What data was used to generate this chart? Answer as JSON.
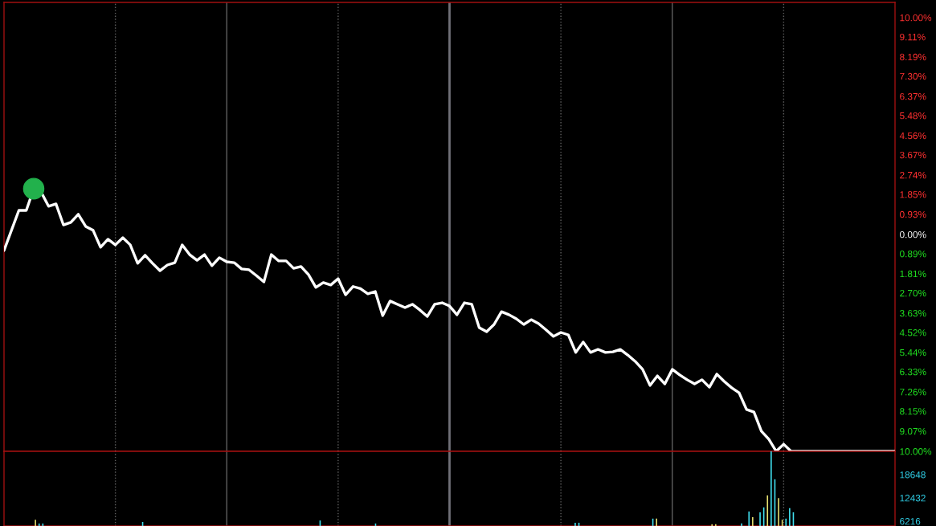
{
  "chart_data": [
    {
      "type": "line",
      "categories": [
        null,
        null,
        null,
        null,
        null,
        null,
        null,
        null,
        null,
        null,
        null,
        null,
        null,
        null,
        null,
        null,
        null,
        null,
        null,
        null,
        null,
        null,
        null,
        null,
        null,
        null,
        null,
        null,
        null,
        null,
        null,
        null,
        null,
        null,
        null,
        null,
        null,
        null,
        null,
        null,
        null,
        null,
        null,
        null,
        null,
        null,
        null,
        null,
        null,
        null,
        null,
        null,
        null,
        null,
        null,
        null,
        null,
        null,
        null,
        null,
        null,
        null,
        null,
        null,
        null,
        null,
        null,
        null,
        null,
        null,
        null,
        null,
        null,
        null,
        null,
        null,
        null,
        null,
        null,
        null,
        null,
        null,
        null,
        null,
        null,
        null,
        null,
        null,
        null,
        null,
        null,
        null,
        null,
        null,
        null,
        null,
        null,
        null,
        null,
        null,
        null,
        null,
        null,
        null,
        null,
        null,
        null,
        null,
        null,
        null,
        null,
        null,
        null,
        null,
        null,
        null,
        null,
        null,
        null,
        null,
        null
      ],
      "ylim": [
        -10,
        10.7
      ],
      "yticks": [
        {
          "value": 10,
          "label": "10.00%"
        },
        {
          "value": 9.11,
          "label": "9.11%"
        },
        {
          "value": 8.19,
          "label": "8.19%"
        },
        {
          "value": 7.3,
          "label": "7.30%"
        },
        {
          "value": 6.37,
          "label": "6.37%"
        },
        {
          "value": 5.48,
          "label": "5.48%"
        },
        {
          "value": 4.56,
          "label": "4.56%"
        },
        {
          "value": 3.67,
          "label": "3.67%"
        },
        {
          "value": 2.74,
          "label": "2.74%"
        },
        {
          "value": 1.85,
          "label": "1.85%"
        },
        {
          "value": 0.93,
          "label": "0.93%"
        },
        {
          "value": 0,
          "label": "0.00%"
        },
        {
          "value": -0.89,
          "label": "0.89%"
        },
        {
          "value": -1.81,
          "label": "1.81%"
        },
        {
          "value": -2.7,
          "label": "2.70%"
        },
        {
          "value": -3.63,
          "label": "3.63%"
        },
        {
          "value": -4.52,
          "label": "4.52%"
        },
        {
          "value": -5.44,
          "label": "5.44%"
        },
        {
          "value": -6.33,
          "label": "6.33%"
        },
        {
          "value": -7.26,
          "label": "7.26%"
        },
        {
          "value": -8.15,
          "label": "8.15%"
        },
        {
          "value": -9.07,
          "label": "9.07%"
        },
        {
          "value": -10,
          "label": "10.00%"
        }
      ],
      "tick_labels": "y",
      "grid": "x",
      "series": [
        {
          "color": "#ffffff",
          "values": [
            -0.74,
            0.19,
            1.11,
            1.11,
            2.11,
            1.95,
            1.3,
            1.41,
            0.44,
            0.56,
            0.93,
            0.37,
            0.19,
            -0.59,
            -0.22,
            -0.48,
            -0.15,
            -0.48,
            -1.33,
            -0.96,
            -1.33,
            -1.67,
            -1.41,
            -1.3,
            -0.48,
            -0.93,
            -1.19,
            -0.93,
            -1.44,
            -1.07,
            -1.26,
            -1.3,
            -1.59,
            -1.63,
            -1.9,
            -2.19,
            -0.93,
            -1.22,
            -1.22,
            -1.56,
            -1.48,
            -1.85,
            -2.44,
            -2.22,
            -2.33,
            -2.04,
            -2.78,
            -2.4,
            -2.5,
            -2.74,
            -2.63,
            -3.74,
            -3.07,
            -3.22,
            -3.37,
            -3.22,
            -3.48,
            -3.78,
            -3.22,
            -3.15,
            -3.3,
            -3.7,
            -3.15,
            -3.22,
            -4.3,
            -4.48,
            -4.15,
            -3.56,
            -3.7,
            -3.89,
            -4.15,
            -3.93,
            -4.11,
            -4.4,
            -4.7,
            -4.52,
            -4.63,
            -5.44,
            -4.96,
            -5.44,
            -5.3,
            -5.44,
            -5.41,
            -5.3,
            -5.56,
            -5.85,
            -6.22,
            -6.96,
            -6.52,
            -6.89,
            -6.22,
            -6.48,
            -6.7,
            -6.89,
            -6.7,
            -7.04,
            -6.44,
            -6.78,
            -7.07,
            -7.3,
            -8.07,
            -8.19,
            -9.07,
            -9.44,
            -10,
            -9.67,
            -10,
            -10,
            -10,
            -10,
            -10,
            -10,
            -10,
            -10,
            -10,
            -10,
            -10,
            -10,
            -10,
            -10,
            -10
          ]
        }
      ]
    },
    {
      "type": "bar",
      "categories": [
        null,
        null,
        null,
        null,
        null,
        null,
        null,
        null,
        null,
        null,
        null,
        null,
        null,
        null,
        null,
        null,
        null,
        null,
        null,
        null,
        null,
        null,
        null,
        null,
        null,
        null,
        null,
        null,
        null,
        null,
        null,
        null,
        null,
        null,
        null,
        null,
        null,
        null,
        null,
        null,
        null,
        null,
        null,
        null,
        null,
        null,
        null,
        null,
        null,
        null,
        null,
        null,
        null,
        null,
        null,
        null,
        null,
        null,
        null,
        null,
        null,
        null,
        null,
        null,
        null,
        null,
        null,
        null,
        null,
        null,
        null,
        null,
        null,
        null,
        null,
        null,
        null,
        null,
        null,
        null,
        null,
        null,
        null,
        null,
        null,
        null,
        null,
        null,
        null,
        null,
        null,
        null,
        null,
        null,
        null,
        null,
        null,
        null,
        null,
        null,
        null,
        null,
        null,
        null,
        null,
        null,
        null,
        null,
        null,
        null,
        null,
        null,
        null,
        null,
        null,
        null,
        null,
        null,
        null,
        null,
        null,
        null,
        null,
        null,
        null,
        null,
        null,
        null,
        null,
        null,
        null,
        null,
        null,
        null,
        null,
        null,
        null,
        null,
        null,
        null,
        null,
        null,
        null,
        null,
        null,
        null,
        null,
        null,
        null,
        null,
        null,
        null,
        null,
        null,
        null,
        null,
        null,
        null,
        null,
        null,
        null,
        null,
        null,
        null,
        null,
        null,
        null,
        null,
        null,
        null,
        null,
        null,
        null,
        null,
        null,
        null,
        null,
        null,
        null,
        null,
        null,
        null,
        null,
        null,
        null,
        null,
        null,
        null,
        null,
        null,
        null,
        null,
        null,
        null,
        null,
        null,
        null,
        null,
        null,
        null,
        null,
        null,
        null,
        null,
        null,
        null,
        null,
        null,
        null,
        null,
        null,
        null,
        null,
        null,
        null,
        null,
        null,
        null,
        null,
        null,
        null,
        null,
        null,
        null,
        null,
        null,
        null,
        null,
        null,
        null,
        null,
        null,
        null,
        null,
        null,
        null,
        null,
        null,
        null,
        null,
        null
      ],
      "ylim": [
        4930,
        24864
      ],
      "yticks": [
        6216,
        12432,
        18648
      ],
      "tick_labels": "y",
      "grid": "x",
      "series": [
        {
          "values": [
            null,
            null,
            null,
            null,
            null,
            null,
            null,
            null,
            6600,
            5600,
            5600,
            null,
            null,
            null,
            null,
            null,
            null,
            null,
            null,
            null,
            null,
            null,
            null,
            null,
            null,
            null,
            null,
            null,
            null,
            null,
            null,
            null,
            null,
            null,
            null,
            null,
            null,
            6000,
            null,
            null,
            null,
            null,
            null,
            null,
            null,
            null,
            null,
            null,
            null,
            null,
            null,
            null,
            null,
            null,
            null,
            null,
            null,
            null,
            null,
            null,
            null,
            null,
            null,
            null,
            null,
            null,
            null,
            null,
            null,
            null,
            null,
            null,
            null,
            null,
            null,
            null,
            null,
            null,
            null,
            null,
            null,
            null,
            null,
            null,
            null,
            6400,
            null,
            null,
            null,
            null,
            null,
            null,
            null,
            null,
            null,
            null,
            null,
            null,
            null,
            null,
            5600,
            null,
            null,
            null,
            null,
            null,
            null,
            null,
            null,
            null,
            null,
            null,
            null,
            null,
            null,
            null,
            null,
            null,
            null,
            null,
            null,
            null,
            null,
            null,
            null,
            null,
            null,
            null,
            null,
            null,
            null,
            null,
            null,
            null,
            null,
            null,
            null,
            null,
            null,
            null,
            null,
            null,
            null,
            null,
            null,
            null,
            null,
            null,
            null,
            null,
            null,
            null,
            null,
            null,
            5800,
            5800,
            null,
            null,
            null,
            null,
            null,
            null,
            null,
            null,
            null,
            null,
            null,
            null,
            null,
            null,
            null,
            null,
            null,
            null,
            null,
            6900,
            6900,
            null,
            null,
            null,
            null,
            null,
            null,
            null,
            null,
            null,
            null,
            null,
            null,
            null,
            null,
            5400,
            5400,
            null,
            null,
            null,
            null,
            null,
            null,
            5600,
            null,
            8800,
            7300,
            null,
            8600,
            9900,
            13100,
            24864,
            17400,
            12400,
            6600,
            6900,
            9700,
            8600,
            null,
            null,
            null,
            null,
            null,
            null,
            null,
            null,
            null,
            null,
            null,
            null,
            null,
            null,
            null,
            null,
            null,
            null,
            null,
            null,
            null,
            null,
            null,
            null,
            null,
            null,
            null
          ],
          "colors": [
            null,
            null,
            null,
            null,
            null,
            null,
            null,
            null,
            "#e8e070",
            "#40e0f0",
            "#40e0f0",
            null,
            null,
            null,
            null,
            null,
            null,
            null,
            null,
            null,
            null,
            null,
            null,
            null,
            null,
            null,
            null,
            null,
            null,
            null,
            null,
            null,
            null,
            null,
            null,
            null,
            null,
            "#40e0f0",
            null,
            null,
            null,
            null,
            null,
            null,
            null,
            null,
            null,
            null,
            null,
            null,
            null,
            null,
            null,
            null,
            null,
            null,
            null,
            null,
            null,
            null,
            null,
            null,
            null,
            null,
            null,
            null,
            null,
            null,
            null,
            null,
            null,
            null,
            null,
            null,
            null,
            null,
            null,
            null,
            null,
            null,
            null,
            null,
            null,
            null,
            null,
            "#40e0f0",
            null,
            null,
            null,
            null,
            null,
            null,
            null,
            null,
            null,
            null,
            null,
            null,
            null,
            null,
            "#40e0f0",
            null,
            null,
            null,
            null,
            null,
            null,
            null,
            null,
            null,
            null,
            null,
            null,
            null,
            null,
            null,
            null,
            null,
            null,
            null,
            null,
            null,
            null,
            null,
            null,
            null,
            null,
            null,
            null,
            null,
            null,
            null,
            null,
            null,
            null,
            null,
            null,
            null,
            null,
            null,
            null,
            null,
            null,
            null,
            null,
            null,
            null,
            null,
            null,
            null,
            null,
            null,
            null,
            null,
            "#40e0f0",
            "#40e0f0",
            null,
            null,
            null,
            null,
            null,
            null,
            null,
            null,
            null,
            null,
            null,
            null,
            null,
            null,
            null,
            null,
            null,
            null,
            null,
            "#40e0f0",
            "#e8e070",
            null,
            null,
            null,
            null,
            null,
            null,
            null,
            null,
            null,
            null,
            null,
            null,
            null,
            null,
            "#e8e070",
            "#e8e070",
            null,
            null,
            null,
            null,
            null,
            null,
            "#40e0f0",
            null,
            "#40e0f0",
            "#e8e070",
            null,
            "#40e0f0",
            "#40e0f0",
            "#e8e070",
            "#40e0f0",
            "#40e0f0",
            "#e8e070",
            "#e8e070",
            "#40e0f0",
            "#40e0f0",
            "#40e0f0",
            null,
            null,
            null,
            null,
            null,
            null,
            null,
            null,
            null,
            null,
            null,
            null,
            null,
            null,
            null,
            null,
            null,
            null,
            null,
            null,
            null,
            null,
            null,
            null,
            null,
            null,
            null
          ]
        }
      ]
    }
  ]
}
